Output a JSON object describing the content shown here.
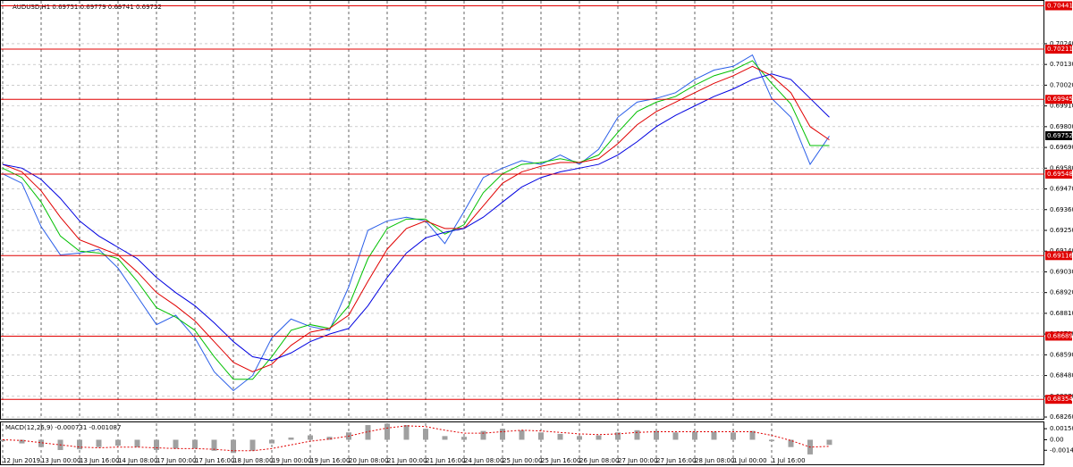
{
  "chart_data": [
    {
      "type": "line",
      "title": "AUDUSD,H1  0.69751 0.69779 0.69741 0.69752",
      "categories": [
        "12 Jun 2019",
        null,
        "13 Jun 00:00",
        null,
        "13 Jun 16:00",
        null,
        "14 Jun 08:00",
        null,
        "17 Jun 00:00",
        null,
        "17 Jun 16:00",
        null,
        "18 Jun 08:00",
        null,
        "19 Jun 00:00",
        null,
        "19 Jun 16:00",
        null,
        "20 Jun 08:00",
        null,
        "21 Jun 00:00",
        null,
        "21 Jun 16:00",
        null,
        "24 Jun 08:00",
        null,
        "25 Jun 00:00",
        null,
        "25 Jun 16:00",
        null,
        "26 Jun 08:00",
        null,
        "27 Jun 00:00",
        null,
        "27 Jun 16:00",
        null,
        "28 Jun 08:00",
        null,
        "1 Jul 00:00",
        null,
        "1 Jul 16:00",
        null,
        null,
        null
      ],
      "series": [
        {
          "color": "#2a5ee8",
          "values": [
            0.6955,
            0.695,
            0.6927,
            0.6912,
            0.6913,
            0.6915,
            0.6905,
            0.689,
            0.6875,
            0.688,
            0.6868,
            0.685,
            0.684,
            0.6848,
            0.6868,
            0.6878,
            0.6874,
            0.6872,
            0.6895,
            0.6925,
            0.693,
            0.6932,
            0.693,
            0.6918,
            0.6935,
            0.6953,
            0.6958,
            0.6962,
            0.696,
            0.6965,
            0.696,
            0.6968,
            0.6985,
            0.6993,
            0.6995,
            0.6998,
            0.7005,
            0.701,
            0.7012,
            0.7018,
            0.6995,
            0.6985,
            0.696,
            0.6975
          ]
        },
        {
          "color": "#00c000",
          "values": [
            0.6958,
            0.6953,
            0.694,
            0.6922,
            0.6914,
            0.6913,
            0.691,
            0.6898,
            0.6884,
            0.6879,
            0.6872,
            0.6858,
            0.6846,
            0.6846,
            0.6858,
            0.6872,
            0.6875,
            0.6873,
            0.6885,
            0.691,
            0.6926,
            0.6931,
            0.6931,
            0.6923,
            0.6928,
            0.6945,
            0.6955,
            0.696,
            0.6961,
            0.6963,
            0.6961,
            0.6965,
            0.6977,
            0.6988,
            0.6993,
            0.6996,
            0.7002,
            0.7007,
            0.701,
            0.7015,
            0.7003,
            0.6992,
            0.697,
            0.697
          ]
        },
        {
          "color": "#e00000",
          "values": [
            0.696,
            0.6956,
            0.6946,
            0.6932,
            0.692,
            0.6916,
            0.6912,
            0.6903,
            0.6892,
            0.6885,
            0.6877,
            0.6866,
            0.6855,
            0.685,
            0.6854,
            0.6864,
            0.6871,
            0.6873,
            0.688,
            0.6898,
            0.6915,
            0.6926,
            0.693,
            0.6926,
            0.6926,
            0.6938,
            0.695,
            0.6956,
            0.6959,
            0.6961,
            0.6961,
            0.6963,
            0.6971,
            0.6981,
            0.6988,
            0.6993,
            0.6998,
            0.7003,
            0.7007,
            0.7012,
            0.7007,
            0.6998,
            0.698,
            0.6973
          ]
        },
        {
          "color": "#0000e0",
          "values": [
            0.696,
            0.6958,
            0.6952,
            0.6942,
            0.693,
            0.6922,
            0.6916,
            0.691,
            0.69,
            0.6892,
            0.6885,
            0.6876,
            0.6866,
            0.6858,
            0.6856,
            0.686,
            0.6866,
            0.687,
            0.6873,
            0.6885,
            0.69,
            0.6913,
            0.6921,
            0.6924,
            0.6926,
            0.6932,
            0.694,
            0.6948,
            0.6953,
            0.6956,
            0.6958,
            0.696,
            0.6965,
            0.6972,
            0.698,
            0.6986,
            0.6991,
            0.6996,
            0.7,
            0.7005,
            0.7008,
            0.7005,
            0.6995,
            0.6985
          ]
        }
      ],
      "ylim": [
        0.68246,
        0.70467
      ],
      "yticks": [
        {
          "value": 0.7024,
          "label": "0.70240"
        },
        {
          "value": 0.7013,
          "label": "0.70130"
        },
        {
          "value": 0.7002,
          "label": "0.70020"
        },
        {
          "value": 0.6991,
          "label": "0.69910"
        },
        {
          "value": 0.698,
          "label": "0.69800"
        },
        {
          "value": 0.6969,
          "label": "0.69690"
        },
        {
          "value": 0.6958,
          "label": "0.69580"
        },
        {
          "value": 0.6947,
          "label": "0.69470"
        },
        {
          "value": 0.6936,
          "label": "0.69360"
        },
        {
          "value": 0.6925,
          "label": "0.69250"
        },
        {
          "value": 0.6914,
          "label": "0.69140"
        },
        {
          "value": 0.6903,
          "label": "0.69030"
        },
        {
          "value": 0.6892,
          "label": "0.68920"
        },
        {
          "value": 0.6881,
          "label": "0.68810"
        },
        {
          "value": 0.687,
          "label": "0.68700"
        },
        {
          "value": 0.6859,
          "label": "0.68590"
        },
        {
          "value": 0.6848,
          "label": "0.68480"
        },
        {
          "value": 0.6837,
          "label": "0.68370"
        },
        {
          "value": 0.6826,
          "label": "0.68260"
        }
      ],
      "levels": [
        0.70441,
        0.70211,
        0.69945,
        0.69548,
        0.69116,
        0.68689,
        0.68354
      ],
      "level_color": "#e00000",
      "current_price": 0.69752,
      "grid": true
    },
    {
      "type": "bar",
      "title": "MACD(12,26,9) -0.000731 -0.001087",
      "series": [
        {
          "color": "#a0a0a0",
          "values": [
            -0.0002,
            -0.0005,
            -0.001,
            -0.0014,
            -0.0013,
            -0.001,
            -0.0008,
            -0.001,
            -0.0014,
            -0.0012,
            -0.0012,
            -0.0015,
            -0.0018,
            -0.0015,
            -0.0005,
            0.0003,
            0.0006,
            0.0004,
            0.001,
            0.002,
            0.0022,
            0.002,
            0.0015,
            0.0005,
            0.0004,
            0.0012,
            0.0015,
            0.0013,
            0.001,
            0.0008,
            0.0005,
            0.0006,
            0.001,
            0.0013,
            0.0012,
            0.001,
            0.0011,
            0.0011,
            0.001,
            0.0012,
            -0.0002,
            -0.001,
            -0.002,
            -0.0007
          ]
        },
        {
          "color": "#e00000",
          "values": [
            0.0,
            -0.0001,
            -0.0004,
            -0.0007,
            -0.001,
            -0.0011,
            -0.001,
            -0.001,
            -0.0011,
            -0.0012,
            -0.0012,
            -0.0013,
            -0.0015,
            -0.0015,
            -0.0012,
            -0.0007,
            -0.0002,
            0.0001,
            0.0005,
            0.0011,
            0.0016,
            0.0019,
            0.0018,
            0.0013,
            0.0009,
            0.0009,
            0.0011,
            0.0013,
            0.0012,
            0.001,
            0.0008,
            0.0007,
            0.0008,
            0.001,
            0.0011,
            0.0011,
            0.0011,
            0.0011,
            0.0011,
            0.0011,
            0.0006,
            -0.0001,
            -0.001,
            -0.0009
          ]
        }
      ],
      "ylim": [
        -0.00335,
        0.00225
      ],
      "yticks": [
        0.001505,
        {
          "value": 0,
          "label": "0.00"
        },
        -0.001434
      ]
    }
  ]
}
